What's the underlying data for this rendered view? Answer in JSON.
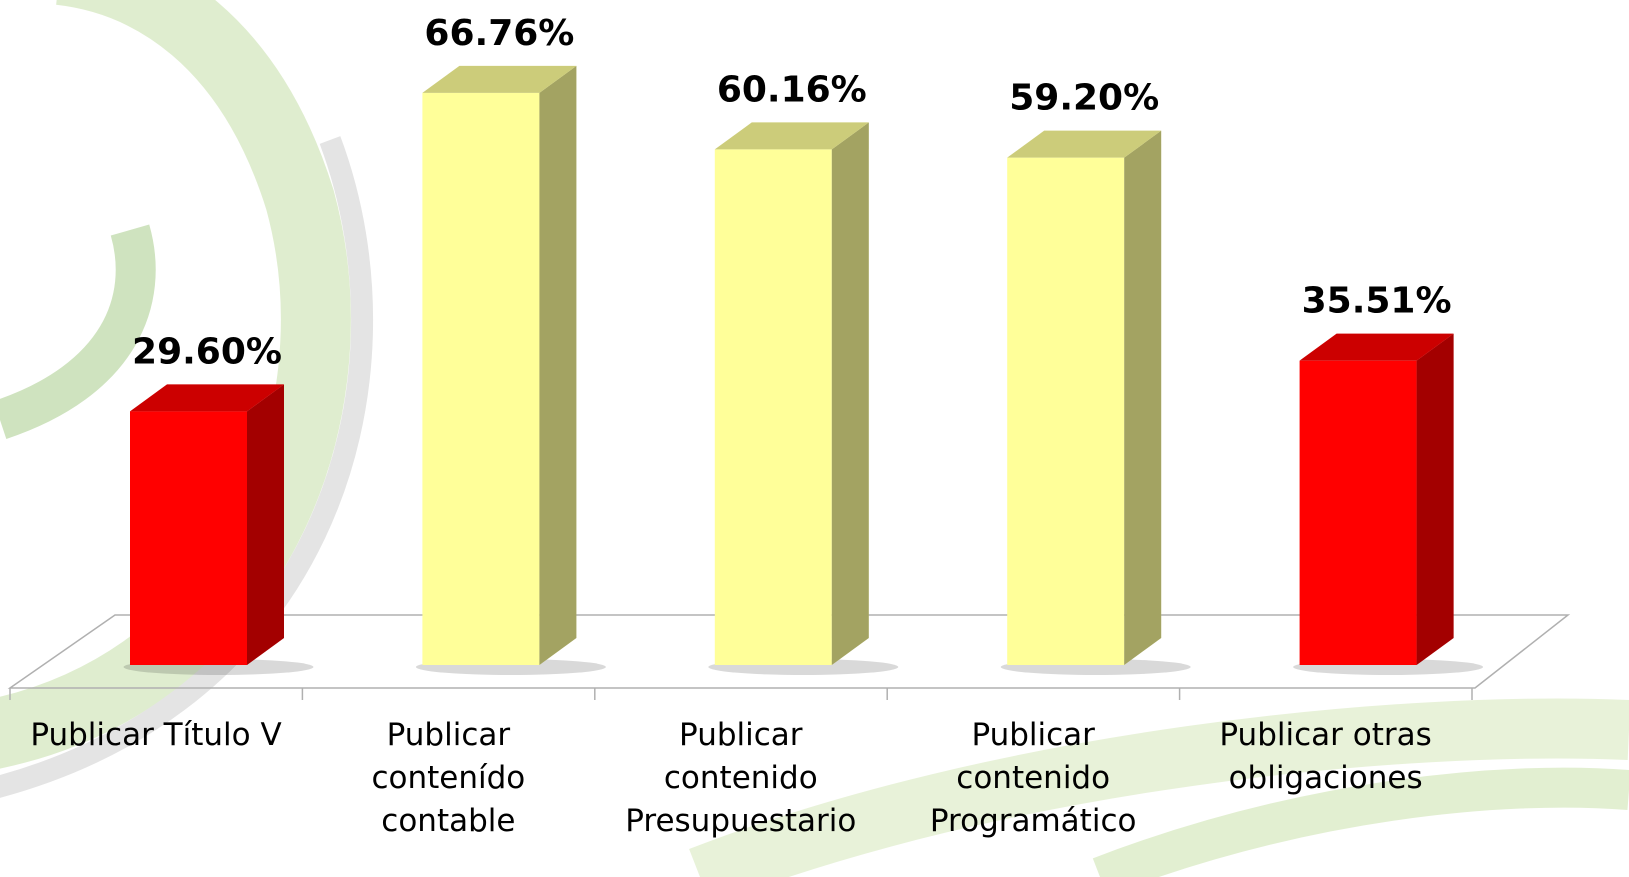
{
  "chart_data": {
    "type": "bar3d",
    "categories": [
      "Publicar Título V",
      "Publicar\ncontenído\ncontable",
      "Publicar\ncontenido\nPresupuestario",
      "Publicar\ncontenido\nProgramático",
      "Publicar otras\nobligaciones"
    ],
    "values": [
      29.6,
      66.76,
      60.16,
      59.2,
      35.51
    ],
    "value_labels": [
      "29.60%",
      "66.76%",
      "60.16%",
      "59.20%",
      "35.51%"
    ],
    "colors": [
      "#ff0000",
      "#ffff99",
      "#ffff99",
      "#ffff99",
      "#ff0000"
    ],
    "ylim": [
      0,
      75
    ]
  }
}
